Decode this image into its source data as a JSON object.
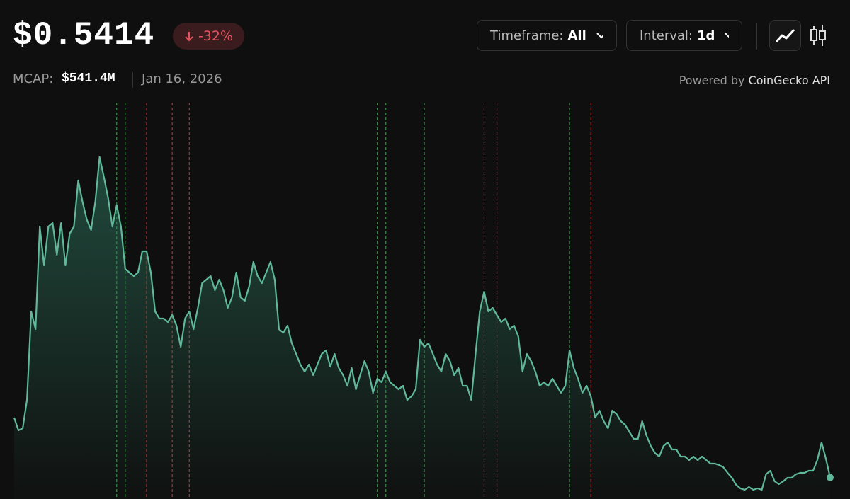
{
  "header": {
    "price": "$0.5414",
    "change": "-32%",
    "mcap_label": "MCAP:",
    "mcap": "$541.4M",
    "date": "Jan 16, 2026",
    "timeframe_label": "Timeframe:",
    "timeframe": "All",
    "interval_label": "Interval:",
    "interval": "1d",
    "powered_by": "Powered by",
    "provider": "CoinGecko API"
  },
  "chart_data": {
    "type": "area",
    "color": "#5fb89a",
    "ylim": [
      0.45,
      2.13
    ],
    "values": [
      0.795,
      0.741,
      0.75,
      0.87,
      1.245,
      1.17,
      1.605,
      1.44,
      1.605,
      1.62,
      1.485,
      1.62,
      1.44,
      1.575,
      1.605,
      1.8,
      1.71,
      1.635,
      1.59,
      1.71,
      1.899,
      1.815,
      1.725,
      1.605,
      1.695,
      1.605,
      1.425,
      1.41,
      1.395,
      1.41,
      1.5,
      1.5,
      1.41,
      1.245,
      1.215,
      1.215,
      1.2,
      1.23,
      1.185,
      1.095,
      1.215,
      1.245,
      1.17,
      1.26,
      1.365,
      1.38,
      1.395,
      1.335,
      1.38,
      1.335,
      1.26,
      1.305,
      1.41,
      1.305,
      1.29,
      1.35,
      1.455,
      1.395,
      1.365,
      1.41,
      1.455,
      1.38,
      1.17,
      1.155,
      1.185,
      1.11,
      1.065,
      1.02,
      0.99,
      1.02,
      0.975,
      1.02,
      1.065,
      1.08,
      1.011,
      1.065,
      1.005,
      0.975,
      0.93,
      1.005,
      0.915,
      0.975,
      1.035,
      0.99,
      0.9,
      0.96,
      0.945,
      0.99,
      0.945,
      0.93,
      0.915,
      0.93,
      0.87,
      0.885,
      0.915,
      1.125,
      1.095,
      1.11,
      1.065,
      1.02,
      0.99,
      1.065,
      1.035,
      0.975,
      1.005,
      0.93,
      0.93,
      0.87,
      1.065,
      1.245,
      1.329,
      1.245,
      1.26,
      1.23,
      1.2,
      1.215,
      1.17,
      1.185,
      1.14,
      0.99,
      1.065,
      1.035,
      0.99,
      0.93,
      0.945,
      0.93,
      0.96,
      0.93,
      0.9,
      0.93,
      1.08,
      1.005,
      0.96,
      0.9,
      0.93,
      0.885,
      0.795,
      0.825,
      0.78,
      0.75,
      0.825,
      0.81,
      0.78,
      0.765,
      0.735,
      0.705,
      0.705,
      0.78,
      0.72,
      0.675,
      0.645,
      0.63,
      0.675,
      0.69,
      0.66,
      0.66,
      0.63,
      0.63,
      0.615,
      0.63,
      0.615,
      0.63,
      0.615,
      0.6,
      0.6,
      0.594,
      0.585,
      0.561,
      0.54,
      0.51,
      0.495,
      0.489,
      0.501,
      0.489,
      0.495,
      0.489,
      0.555,
      0.57,
      0.525,
      0.513,
      0.525,
      0.54,
      0.54,
      0.555,
      0.561,
      0.561,
      0.57,
      0.57,
      0.615,
      0.69,
      0.621,
      0.5414
    ],
    "markers": [
      {
        "index": 24,
        "color": "#3f8a4a"
      },
      {
        "index": 26,
        "color": "#3f8a4a"
      },
      {
        "index": 31,
        "color": "#a8353c"
      },
      {
        "index": 37,
        "color": "#a8353c"
      },
      {
        "index": 41,
        "color": "#a8353c"
      },
      {
        "index": 85,
        "color": "#3f8a4a"
      },
      {
        "index": 87,
        "color": "#3f8a4a"
      },
      {
        "index": 96,
        "color": "#3f8a4a"
      },
      {
        "index": 110,
        "color": "#a8353c"
      },
      {
        "index": 113,
        "color": "#a8353c"
      },
      {
        "index": 130,
        "color": "#3f8a4a"
      },
      {
        "index": 135,
        "color": "#a8353c"
      }
    ]
  }
}
